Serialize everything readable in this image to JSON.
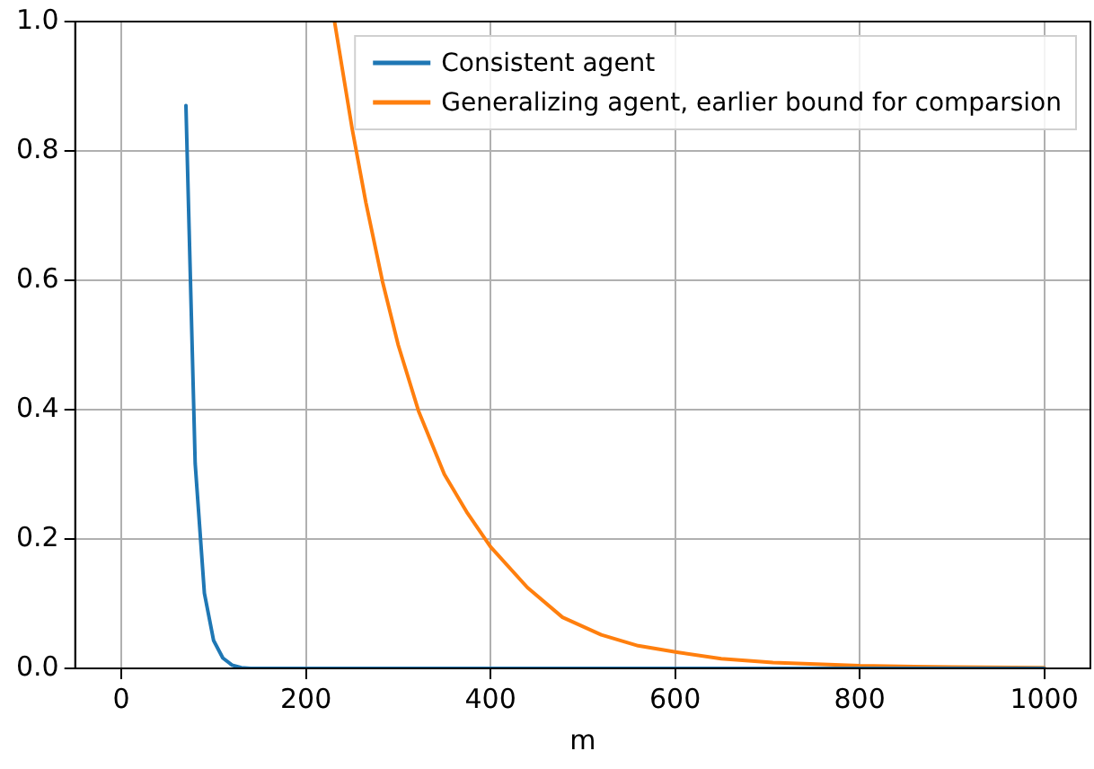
{
  "chart_data": {
    "type": "line",
    "xlabel": "m",
    "xlim": [
      -50,
      1050
    ],
    "ylim": [
      0,
      1
    ],
    "xticks": [
      0,
      200,
      400,
      600,
      800,
      1000
    ],
    "yticks": [
      {
        "value": 0,
        "label": "0.0"
      },
      {
        "value": 0.2,
        "label": "0.2"
      },
      {
        "value": 0.4,
        "label": "0.4"
      },
      {
        "value": 0.6,
        "label": "0.6"
      },
      {
        "value": 0.8,
        "label": "0.8"
      },
      {
        "value": 1,
        "label": "1.0"
      }
    ],
    "grid": true,
    "legend": "top right",
    "marker": "none",
    "line_style": "solid",
    "series": [
      {
        "name": "Consistent agent",
        "color": "#1f77b4",
        "x": [
          70,
          80,
          90,
          100,
          110,
          120,
          130,
          140,
          200,
          400,
          600,
          800,
          1000
        ],
        "values": [
          0.87,
          0.317,
          0.116,
          0.043,
          0.016,
          0.005,
          0.001,
          0,
          0,
          0,
          0,
          0,
          0
        ]
      },
      {
        "name": "Generalizing agent, earlier bound for comparsion",
        "color": "#ff7f0e",
        "x": [
          231,
          250,
          265,
          283,
          300,
          322,
          350,
          375,
          400,
          440,
          478,
          520,
          560,
          602,
          650,
          706,
          800,
          900,
          1000
        ],
        "values": [
          1.0,
          0.835,
          0.72,
          0.598,
          0.5,
          0.398,
          0.3,
          0.24,
          0.188,
          0.125,
          0.079,
          0.052,
          0.035,
          0.025,
          0.015,
          0.009,
          0.004,
          0.002,
          0.001
        ]
      }
    ]
  }
}
